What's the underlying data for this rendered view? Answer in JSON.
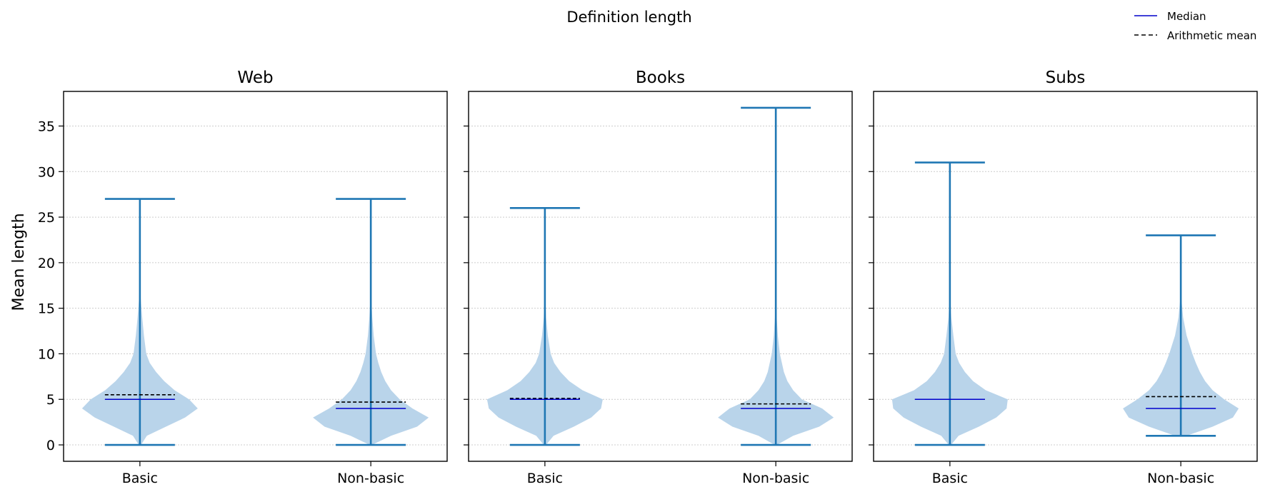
{
  "figure": {
    "suptitle": "Definition length",
    "ylabel": "Mean length"
  },
  "legend": {
    "placement": "top-right",
    "entries": [
      {
        "label": "Median",
        "color": "#0000cc",
        "style": "solid"
      },
      {
        "label": "Arithmetic mean",
        "color": "#000000",
        "style": "dashed"
      }
    ]
  },
  "colors": {
    "violin_fill": "#b9d4ea",
    "whisker": "#1f77b4",
    "median": "#0000cc",
    "mean": "#000000",
    "grid": "#cccccc"
  },
  "chart_data": [
    {
      "type": "violin",
      "title": "Web",
      "categories": [
        "Basic",
        "Non-basic"
      ],
      "ylim": [
        -1.8,
        38.8
      ],
      "yticks": [
        0,
        5,
        10,
        15,
        20,
        25,
        30,
        35
      ],
      "grid": "y-dotted",
      "series": [
        {
          "category": "Basic",
          "min": 0,
          "max": 27,
          "median": 5,
          "mean": 5.5,
          "density": [
            [
              0,
              0.02
            ],
            [
              1,
              0.12
            ],
            [
              2,
              0.45
            ],
            [
              3,
              0.78
            ],
            [
              4,
              1.0
            ],
            [
              5,
              0.85
            ],
            [
              6,
              0.6
            ],
            [
              7,
              0.42
            ],
            [
              8,
              0.28
            ],
            [
              9,
              0.17
            ],
            [
              10,
              0.11
            ],
            [
              12,
              0.07
            ],
            [
              14,
              0.04
            ],
            [
              16,
              0.015
            ],
            [
              18,
              0.005
            ],
            [
              27,
              0.003
            ]
          ]
        },
        {
          "category": "Non-basic",
          "min": 0,
          "max": 27,
          "median": 4,
          "mean": 4.7,
          "density": [
            [
              0,
              0.02
            ],
            [
              1,
              0.35
            ],
            [
              2,
              0.8
            ],
            [
              3,
              1.0
            ],
            [
              4,
              0.72
            ],
            [
              5,
              0.5
            ],
            [
              6,
              0.35
            ],
            [
              7,
              0.25
            ],
            [
              8,
              0.18
            ],
            [
              9,
              0.13
            ],
            [
              10,
              0.09
            ],
            [
              12,
              0.05
            ],
            [
              14,
              0.025
            ],
            [
              16,
              0.008
            ],
            [
              18,
              0.004
            ],
            [
              27,
              0.003
            ]
          ]
        }
      ]
    },
    {
      "type": "violin",
      "title": "Books",
      "categories": [
        "Basic",
        "Non-basic"
      ],
      "ylim": [
        -1.8,
        38.8
      ],
      "yticks": [
        0,
        5,
        10,
        15,
        20,
        25,
        30,
        35
      ],
      "grid": "y-dotted",
      "series": [
        {
          "category": "Basic",
          "min": 0,
          "max": 26,
          "median": 5,
          "mean": 5.1,
          "density": [
            [
              0,
              0.02
            ],
            [
              1,
              0.15
            ],
            [
              2,
              0.5
            ],
            [
              3,
              0.8
            ],
            [
              4,
              0.97
            ],
            [
              5,
              1.0
            ],
            [
              6,
              0.65
            ],
            [
              7,
              0.42
            ],
            [
              8,
              0.27
            ],
            [
              9,
              0.16
            ],
            [
              10,
              0.1
            ],
            [
              12,
              0.05
            ],
            [
              14,
              0.02
            ],
            [
              16,
              0.008
            ],
            [
              26,
              0.003
            ]
          ]
        },
        {
          "category": "Non-basic",
          "min": 0,
          "max": 37,
          "median": 4,
          "mean": 4.5,
          "density": [
            [
              0,
              0.02
            ],
            [
              1,
              0.3
            ],
            [
              2,
              0.75
            ],
            [
              3,
              1.0
            ],
            [
              4,
              0.8
            ],
            [
              5,
              0.45
            ],
            [
              6,
              0.3
            ],
            [
              7,
              0.2
            ],
            [
              8,
              0.14
            ],
            [
              10,
              0.07
            ],
            [
              12,
              0.035
            ],
            [
              14,
              0.015
            ],
            [
              16,
              0.006
            ],
            [
              20,
              0.003
            ],
            [
              37,
              0.002
            ]
          ]
        }
      ]
    },
    {
      "type": "violin",
      "title": "Subs",
      "categories": [
        "Basic",
        "Non-basic"
      ],
      "ylim": [
        -1.8,
        38.8
      ],
      "yticks": [
        0,
        5,
        10,
        15,
        20,
        25,
        30,
        35
      ],
      "grid": "y-dotted",
      "series": [
        {
          "category": "Basic",
          "min": 0,
          "max": 31,
          "median": 5,
          "mean": 5.0,
          "density": [
            [
              0,
              0.02
            ],
            [
              1,
              0.15
            ],
            [
              2,
              0.5
            ],
            [
              3,
              0.8
            ],
            [
              4,
              0.98
            ],
            [
              5,
              1.0
            ],
            [
              6,
              0.62
            ],
            [
              7,
              0.4
            ],
            [
              8,
              0.26
            ],
            [
              9,
              0.16
            ],
            [
              10,
              0.1
            ],
            [
              12,
              0.06
            ],
            [
              14,
              0.025
            ],
            [
              16,
              0.008
            ],
            [
              31,
              0.003
            ]
          ]
        },
        {
          "category": "Non-basic",
          "min": 1,
          "max": 23,
          "median": 4,
          "mean": 5.3,
          "density": [
            [
              1,
              0.1
            ],
            [
              2,
              0.55
            ],
            [
              3,
              0.9
            ],
            [
              4,
              1.0
            ],
            [
              5,
              0.75
            ],
            [
              6,
              0.55
            ],
            [
              7,
              0.42
            ],
            [
              8,
              0.33
            ],
            [
              9,
              0.26
            ],
            [
              10,
              0.2
            ],
            [
              12,
              0.1
            ],
            [
              14,
              0.04
            ],
            [
              16,
              0.01
            ],
            [
              23,
              0.003
            ]
          ]
        }
      ]
    }
  ]
}
